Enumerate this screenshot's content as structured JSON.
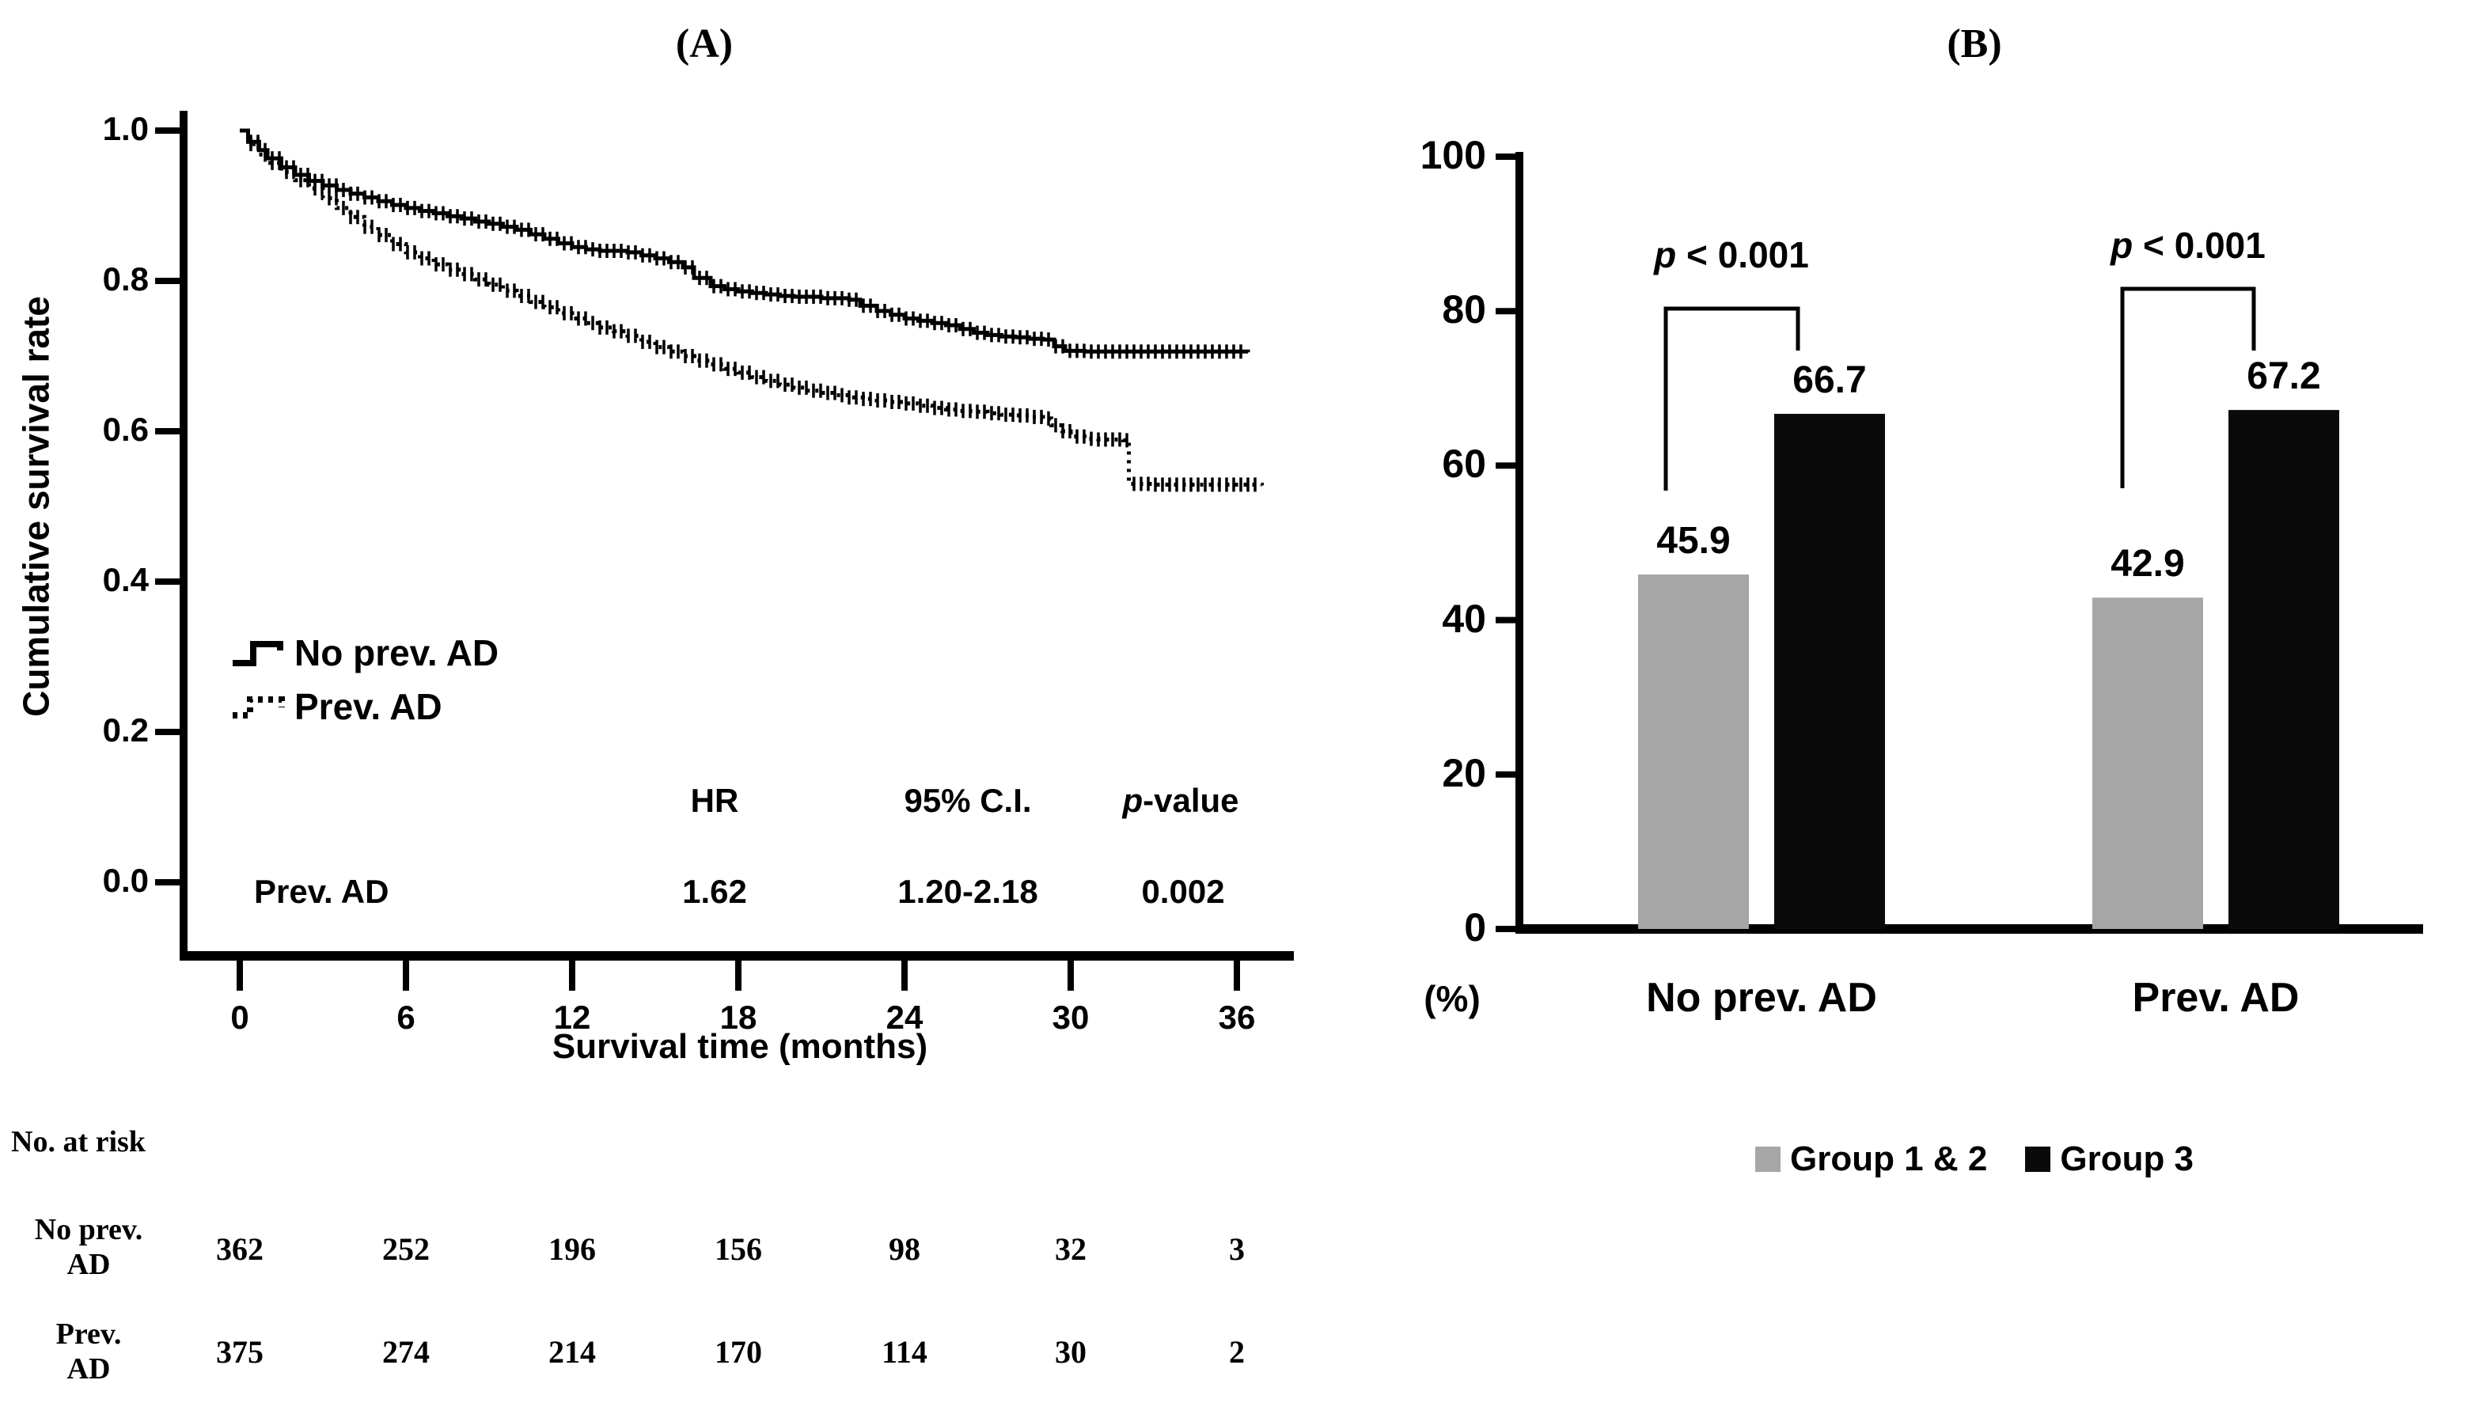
{
  "figure": {
    "background": "#ffffff",
    "text_color": "#000000",
    "panel_a": {
      "title": "(A)",
      "y_axis_label": "Cumulative survival rate",
      "x_axis_label": "Survival time (months)",
      "y_ticks": [
        "1.0",
        "0.8",
        "0.6",
        "0.4",
        "0.2",
        "0.0"
      ],
      "x_ticks": [
        "0",
        "6",
        "12",
        "18",
        "24",
        "30",
        "36"
      ],
      "legend": [
        {
          "label": "No prev. AD",
          "icon": "solid-step-line-icon",
          "style": "solid"
        },
        {
          "label": "Prev. AD",
          "icon": "dotted-step-line-icon",
          "style": "dotted"
        }
      ],
      "stats_table": {
        "headers": [
          "HR",
          "95% C.I.",
          "p-value"
        ],
        "row_label": "Prev. AD",
        "hr": "1.62",
        "ci": "1.20-2.18",
        "p_value": "0.002"
      },
      "risk_table": {
        "title": "No. at risk",
        "rows": [
          {
            "label_lines": [
              "No prev.",
              "AD"
            ],
            "values": [
              "362",
              "252",
              "196",
              "156",
              "98",
              "32",
              "3"
            ]
          },
          {
            "label_lines": [
              "Prev.",
              "AD"
            ],
            "values": [
              "375",
              "274",
              "214",
              "170",
              "114",
              "30",
              "2"
            ]
          }
        ]
      }
    },
    "panel_b": {
      "title": "(B)",
      "unit_label": "(%)",
      "y_ticks": [
        "0",
        "20",
        "40",
        "60",
        "80",
        "100"
      ],
      "categories": [
        "No prev. AD",
        "Prev. AD"
      ],
      "p_labels": [
        "p < 0.001",
        "p < 0.001"
      ],
      "value_labels": [
        "45.9",
        "66.7",
        "42.9",
        "67.2"
      ],
      "legend": [
        {
          "label": "Group 1 & 2",
          "icon": "gray-square-swatch",
          "color": "#a6a6a6"
        },
        {
          "label": "Group 3",
          "icon": "black-square-swatch",
          "color": "#0a0a0a"
        }
      ]
    }
  },
  "chart_data": [
    {
      "type": "line",
      "subtype": "kaplan-meier-step",
      "title": "(A)",
      "xlabel": "Survival time (months)",
      "ylabel": "Cumulative survival rate",
      "xlim": [
        0,
        37.5
      ],
      "ylim": [
        0.0,
        1.05
      ],
      "x_ticks": [
        0,
        6,
        12,
        18,
        24,
        30,
        36
      ],
      "y_ticks": [
        0.0,
        0.2,
        0.4,
        0.6,
        0.8,
        1.0
      ],
      "grid": false,
      "legend_position": "inside-left",
      "series": [
        {
          "name": "No prev. AD",
          "style": "solid",
          "censor_marks": true,
          "points": [
            [
              0,
              1.0
            ],
            [
              0.3,
              0.985
            ],
            [
              0.7,
              0.974
            ],
            [
              1,
              0.963
            ],
            [
              1.5,
              0.951
            ],
            [
              2,
              0.941
            ],
            [
              2.5,
              0.933
            ],
            [
              3,
              0.927
            ],
            [
              3.5,
              0.921
            ],
            [
              4,
              0.916
            ],
            [
              4.5,
              0.911
            ],
            [
              5,
              0.906
            ],
            [
              5.5,
              0.901
            ],
            [
              6,
              0.897
            ],
            [
              6.5,
              0.893
            ],
            [
              7,
              0.89
            ],
            [
              7.5,
              0.886
            ],
            [
              8,
              0.883
            ],
            [
              8.5,
              0.879
            ],
            [
              9,
              0.876
            ],
            [
              9.5,
              0.872
            ],
            [
              10,
              0.868
            ],
            [
              10.5,
              0.862
            ],
            [
              11,
              0.856
            ],
            [
              11.5,
              0.85
            ],
            [
              12,
              0.845
            ],
            [
              12.5,
              0.842
            ],
            [
              13,
              0.84
            ],
            [
              14,
              0.838
            ],
            [
              14.5,
              0.834
            ],
            [
              15,
              0.83
            ],
            [
              15.5,
              0.825
            ],
            [
              16,
              0.818
            ],
            [
              16.4,
              0.804
            ],
            [
              17,
              0.793
            ],
            [
              17.5,
              0.789
            ],
            [
              18,
              0.786
            ],
            [
              18.5,
              0.784
            ],
            [
              19,
              0.782
            ],
            [
              19.5,
              0.78
            ],
            [
              20,
              0.779
            ],
            [
              21,
              0.777
            ],
            [
              22,
              0.775
            ],
            [
              22.4,
              0.767
            ],
            [
              23,
              0.76
            ],
            [
              23.5,
              0.755
            ],
            [
              24,
              0.75
            ],
            [
              24.5,
              0.747
            ],
            [
              25,
              0.744
            ],
            [
              25.5,
              0.741
            ],
            [
              26,
              0.736
            ],
            [
              26.5,
              0.731
            ],
            [
              27,
              0.728
            ],
            [
              27.5,
              0.726
            ],
            [
              28,
              0.725
            ],
            [
              28.5,
              0.723
            ],
            [
              29,
              0.722
            ],
            [
              29.4,
              0.713
            ],
            [
              29.8,
              0.707
            ],
            [
              30.5,
              0.706
            ],
            [
              36.4,
              0.705
            ]
          ]
        },
        {
          "name": "Prev. AD",
          "style": "dotted",
          "censor_marks": true,
          "points": [
            [
              0,
              1.0
            ],
            [
              0.3,
              0.982
            ],
            [
              0.7,
              0.968
            ],
            [
              1,
              0.957
            ],
            [
              1.5,
              0.945
            ],
            [
              2,
              0.934
            ],
            [
              2.5,
              0.923
            ],
            [
              3,
              0.91
            ],
            [
              3.5,
              0.897
            ],
            [
              4,
              0.885
            ],
            [
              4.5,
              0.872
            ],
            [
              5,
              0.861
            ],
            [
              5.5,
              0.849
            ],
            [
              6,
              0.838
            ],
            [
              6.5,
              0.83
            ],
            [
              7,
              0.822
            ],
            [
              7.5,
              0.815
            ],
            [
              8,
              0.809
            ],
            [
              8.5,
              0.802
            ],
            [
              9,
              0.795
            ],
            [
              9.5,
              0.787
            ],
            [
              10,
              0.78
            ],
            [
              10.5,
              0.772
            ],
            [
              11,
              0.765
            ],
            [
              11.5,
              0.757
            ],
            [
              12,
              0.75
            ],
            [
              12.5,
              0.744
            ],
            [
              13,
              0.738
            ],
            [
              13.5,
              0.733
            ],
            [
              14,
              0.727
            ],
            [
              14.5,
              0.719
            ],
            [
              15,
              0.712
            ],
            [
              15.5,
              0.706
            ],
            [
              16,
              0.7
            ],
            [
              16.5,
              0.694
            ],
            [
              17,
              0.689
            ],
            [
              17.5,
              0.683
            ],
            [
              18,
              0.678
            ],
            [
              18.5,
              0.672
            ],
            [
              19,
              0.667
            ],
            [
              19.5,
              0.662
            ],
            [
              20,
              0.658
            ],
            [
              20.5,
              0.654
            ],
            [
              21,
              0.651
            ],
            [
              21.5,
              0.648
            ],
            [
              22,
              0.645
            ],
            [
              22.5,
              0.643
            ],
            [
              23,
              0.641
            ],
            [
              23.5,
              0.639
            ],
            [
              24,
              0.637
            ],
            [
              24.5,
              0.634
            ],
            [
              25,
              0.631
            ],
            [
              25.5,
              0.629
            ],
            [
              26,
              0.627
            ],
            [
              26.5,
              0.626
            ],
            [
              27,
              0.624
            ],
            [
              27.5,
              0.622
            ],
            [
              28,
              0.621
            ],
            [
              28.5,
              0.619
            ],
            [
              29,
              0.617
            ],
            [
              29.3,
              0.608
            ],
            [
              29.7,
              0.6
            ],
            [
              30,
              0.593
            ],
            [
              30.5,
              0.59
            ],
            [
              31,
              0.589
            ],
            [
              31.9,
              0.588
            ],
            [
              32.1,
              0.53
            ],
            [
              33,
              0.529
            ],
            [
              36.9,
              0.528
            ]
          ]
        }
      ],
      "annotation_table": {
        "headers": [
          "HR",
          "95% C.I.",
          "p-value"
        ],
        "rows": [
          {
            "label": "Prev. AD",
            "values": [
              "1.62",
              "1.20-2.18",
              "0.002"
            ]
          }
        ]
      },
      "number_at_risk": {
        "title": "No. at risk",
        "times": [
          0,
          6,
          12,
          18,
          24,
          30,
          36
        ],
        "rows": [
          {
            "name": "No prev. AD",
            "counts": [
              362,
              252,
              196,
              156,
              98,
              32,
              3
            ]
          },
          {
            "name": "Prev. AD",
            "counts": [
              375,
              274,
              214,
              170,
              114,
              30,
              2
            ]
          }
        ]
      }
    },
    {
      "type": "bar",
      "title": "(B)",
      "categories": [
        "No prev. AD",
        "Prev. AD"
      ],
      "series": [
        {
          "name": "Group 1 & 2",
          "color": "#a6a6a6",
          "values": [
            45.9,
            42.9
          ]
        },
        {
          "name": "Group 3",
          "color": "#0a0a0a",
          "values": [
            66.7,
            67.2
          ]
        }
      ],
      "ylabel": "(%)",
      "ylim": [
        0,
        100
      ],
      "y_ticks": [
        0,
        20,
        40,
        60,
        80,
        100
      ],
      "grid": false,
      "legend_position": "bottom",
      "annotations": [
        {
          "category": "No prev. AD",
          "text": "p < 0.001"
        },
        {
          "category": "Prev. AD",
          "text": "p < 0.001"
        }
      ]
    }
  ]
}
